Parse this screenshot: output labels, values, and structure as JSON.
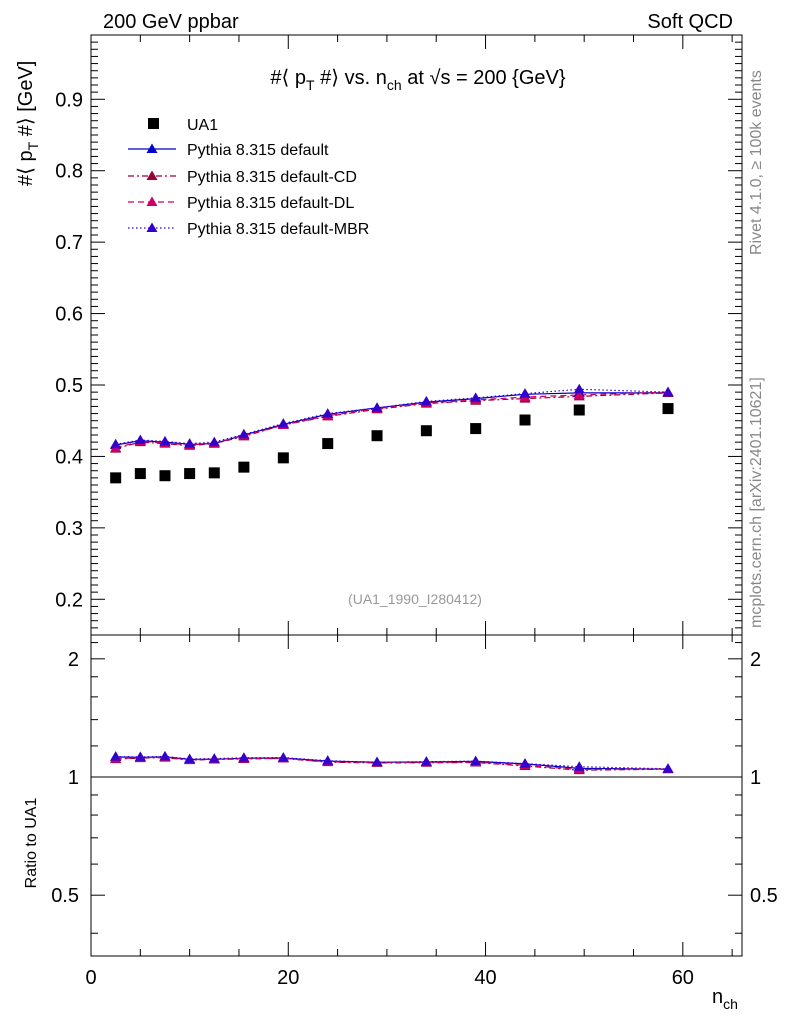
{
  "header": {
    "left": "200 GeV ppbar",
    "right": "Soft QCD"
  },
  "side_labels": {
    "top": "Rivet 4.1.0, ≥ 100k events",
    "bottom": "mcplots.cern.ch [arXiv:2401.10621]"
  },
  "watermark": "(UA1_1990_I280412)",
  "chart_data": {
    "type": "scatter",
    "title": "#⟨ p_T #⟩ vs. n_ch at √s = 200 {GeV}",
    "title_parts": {
      "a": "#⟨ p",
      "a_sub": "T",
      "b": " #⟩ vs. n",
      "b_sub": "ch",
      "c": " at ",
      "sqrt": "√",
      "c2": "s = 200 {GeV}"
    },
    "ylabel_parts": {
      "a": "#⟨ p",
      "a_sub": "T",
      "b": " #⟩ [GeV]"
    },
    "xlabel_parts": {
      "a": "n",
      "a_sub": "ch"
    },
    "ratio_ylabel": "Ratio to UA1",
    "xlim": [
      0,
      66
    ],
    "ylim": [
      0.15,
      0.99
    ],
    "ratio_ylim": [
      0.35,
      2.3
    ],
    "x_ticks": [
      0,
      20,
      40,
      60
    ],
    "y_ticks": [
      0.2,
      0.3,
      0.4,
      0.5,
      0.6,
      0.7,
      0.8,
      0.9
    ],
    "ratio_ticks": [
      0.5,
      1,
      2
    ],
    "x_tick_labels": [
      "0",
      "20",
      "40",
      "60"
    ],
    "y_tick_labels": [
      "0.2",
      "0.3",
      "0.4",
      "0.5",
      "0.6",
      "0.7",
      "0.8",
      "0.9"
    ],
    "ratio_tick_labels": [
      "0.5",
      "1",
      "2"
    ],
    "x": [
      2.5,
      5,
      7.5,
      10,
      12.5,
      15.5,
      19.5,
      24,
      29,
      34,
      39,
      44,
      49.5,
      58.5
    ],
    "data": {
      "name": "UA1",
      "color": "#000000",
      "values": [
        0.37,
        0.376,
        0.373,
        0.376,
        0.377,
        0.385,
        0.398,
        0.418,
        0.429,
        0.436,
        0.439,
        0.451,
        0.465,
        0.467
      ]
    },
    "series": [
      {
        "name": "Pythia 8.315 default",
        "color": "#0000cc",
        "style": "solid",
        "values": [
          0.416,
          0.422,
          0.42,
          0.417,
          0.418,
          0.43,
          0.445,
          0.459,
          0.468,
          0.476,
          0.481,
          0.487,
          0.489,
          0.489
        ]
      },
      {
        "name": "Pythia 8.315 default-CD",
        "color": "#990033",
        "style": "dashdot",
        "values": [
          0.411,
          0.42,
          0.418,
          0.415,
          0.418,
          0.428,
          0.444,
          0.456,
          0.466,
          0.474,
          0.478,
          0.481,
          0.484,
          0.489
        ]
      },
      {
        "name": "Pythia 8.315 default-DL",
        "color": "#cc0066",
        "style": "dash",
        "values": [
          0.412,
          0.421,
          0.419,
          0.416,
          0.419,
          0.429,
          0.444,
          0.457,
          0.467,
          0.475,
          0.479,
          0.483,
          0.486,
          0.49
        ]
      },
      {
        "name": "Pythia 8.315 default-MBR",
        "color": "#3300cc",
        "style": "dot",
        "values": [
          0.417,
          0.423,
          0.421,
          0.418,
          0.42,
          0.431,
          0.446,
          0.46,
          0.468,
          0.477,
          0.482,
          0.488,
          0.494,
          0.49
        ]
      }
    ]
  }
}
